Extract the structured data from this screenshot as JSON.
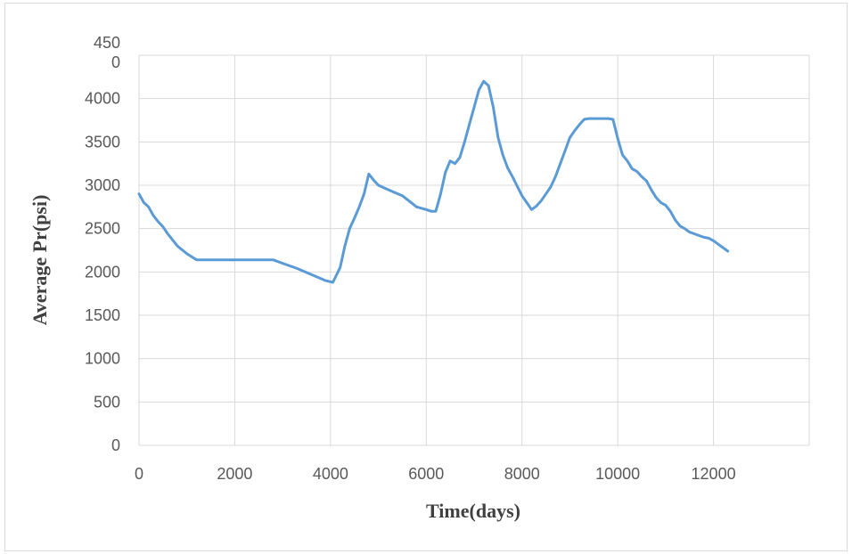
{
  "chart_data": {
    "type": "line",
    "title": "",
    "xlabel": "Time(days)",
    "ylabel": "Average Pr(psi)",
    "xlim": [
      0,
      14000
    ],
    "ylim": [
      0,
      4500
    ],
    "x_ticks": [
      0,
      2000,
      4000,
      6000,
      8000,
      10000,
      12000
    ],
    "x_tick_labels": [
      "0",
      "2000",
      "4000",
      "6000",
      "8000",
      "10000",
      "12000"
    ],
    "y_ticks": [
      0,
      500,
      1000,
      1500,
      2000,
      2500,
      3000,
      3500,
      4000,
      4500
    ],
    "y_tick_labels": [
      "0",
      "500",
      "1000",
      "1500",
      "2000",
      "2500",
      "3000",
      "3500",
      "4000",
      "450\n0"
    ],
    "grid": true,
    "legend": "none",
    "colors": {
      "line": "#5b9bd5",
      "grid": "#d9d9d9",
      "tick_text": "#595959",
      "title_text": "#404040"
    },
    "series": [
      {
        "x": [
          0,
          100,
          200,
          300,
          400,
          500,
          600,
          700,
          800,
          1000,
          1200,
          1300,
          2000,
          2500,
          2800,
          3000,
          3300,
          3600,
          3900,
          4050,
          4200,
          4300,
          4400,
          4500,
          4600,
          4700,
          4800,
          4900,
          5000,
          5200,
          5500,
          5800,
          6000,
          6100,
          6200,
          6300,
          6400,
          6500,
          6600,
          6700,
          6800,
          6900,
          7000,
          7100,
          7200,
          7300,
          7400,
          7500,
          7600,
          7700,
          7800,
          7900,
          8000,
          8100,
          8200,
          8300,
          8400,
          8500,
          8600,
          8700,
          8800,
          8900,
          9000,
          9100,
          9200,
          9300,
          9400,
          9600,
          9800,
          9900,
          10000,
          10100,
          10200,
          10300,
          10400,
          10500,
          10600,
          10700,
          10800,
          10900,
          11000,
          11100,
          11200,
          11300,
          11400,
          11500,
          11600,
          11700,
          11800,
          11900,
          12000,
          12100,
          12200,
          12300
        ],
        "y": [
          2900,
          2800,
          2750,
          2650,
          2580,
          2520,
          2440,
          2370,
          2300,
          2210,
          2140,
          2140,
          2140,
          2140,
          2140,
          2100,
          2040,
          1970,
          1900,
          1880,
          2050,
          2300,
          2500,
          2620,
          2750,
          2900,
          3130,
          3060,
          3000,
          2950,
          2880,
          2750,
          2720,
          2700,
          2700,
          2900,
          3150,
          3280,
          3250,
          3320,
          3500,
          3700,
          3900,
          4100,
          4200,
          4150,
          3900,
          3550,
          3350,
          3200,
          3100,
          2990,
          2880,
          2800,
          2720,
          2760,
          2820,
          2900,
          2980,
          3100,
          3250,
          3400,
          3550,
          3630,
          3700,
          3760,
          3770,
          3770,
          3770,
          3760,
          3540,
          3350,
          3280,
          3190,
          3160,
          3100,
          3050,
          2950,
          2860,
          2800,
          2770,
          2700,
          2600,
          2530,
          2500,
          2460,
          2440,
          2420,
          2400,
          2390,
          2360,
          2320,
          2280,
          2240
        ]
      }
    ]
  }
}
